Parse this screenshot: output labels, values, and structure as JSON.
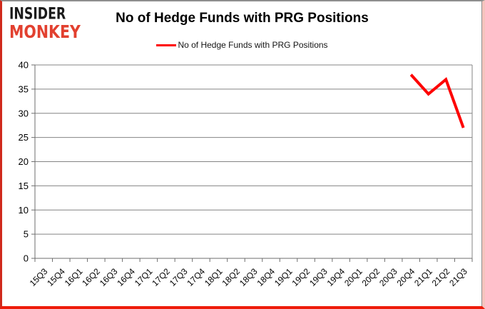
{
  "logo": {
    "line1": "INSIDER",
    "line2": "MONKEY",
    "color": "#e2402f"
  },
  "header": {
    "title": "No of Hedge Funds with PRG Positions"
  },
  "legend": {
    "label": "No of Hedge Funds with PRG Positions",
    "color": "#fe0000"
  },
  "chart_data": {
    "type": "line",
    "title": "No of Hedge Funds with PRG Positions",
    "xlabel": "",
    "ylabel": "",
    "categories": [
      "15Q3",
      "15Q4",
      "16Q1",
      "16Q2",
      "16Q3",
      "16Q4",
      "17Q1",
      "17Q2",
      "17Q3",
      "17Q4",
      "18Q1",
      "18Q2",
      "18Q3",
      "18Q4",
      "19Q1",
      "19Q2",
      "19Q3",
      "19Q4",
      "20Q1",
      "20Q2",
      "20Q3",
      "20Q4",
      "21Q1",
      "21Q2",
      "21Q3"
    ],
    "series": [
      {
        "name": "No of Hedge Funds with PRG Positions",
        "color": "#fe0000",
        "values": [
          null,
          null,
          null,
          null,
          null,
          null,
          null,
          null,
          null,
          null,
          null,
          null,
          null,
          null,
          null,
          null,
          null,
          null,
          null,
          null,
          null,
          38,
          34,
          37,
          27
        ]
      }
    ],
    "ylim": [
      0,
      40
    ],
    "ytick_step": 5,
    "grid": true,
    "gridline_color": "#848484",
    "axis_color": "#6e6e6e",
    "legend_position": "top",
    "x_label_rotation": 45
  }
}
